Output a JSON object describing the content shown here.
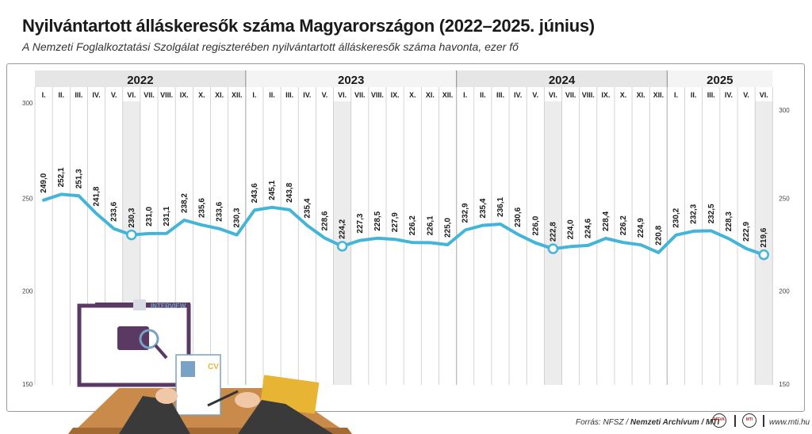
{
  "title": "Nyilvántartott álláskeresők száma Magyarországon (2022–2025. június)",
  "subtitle": "A Nemzeti Foglalkoztatási Szolgálat regiszterében nyilvántartott álláskeresők száma havonta, ezer fő",
  "footer": {
    "source_prefix": "Forrás: NFSZ / ",
    "source_bold": "Nemzeti Archívum / MTI",
    "logo1": "MTVA",
    "logo2": "MTI",
    "website": "www.mti.hu"
  },
  "illustration": {
    "interview_label": "INTERVIEW",
    "cv_label": "CV"
  },
  "colors": {
    "line": "#44b4d8",
    "band": "#e6e6e6",
    "highlight": "#ececec",
    "grid": "#c9c9c9"
  },
  "chart_data": {
    "type": "line",
    "years": [
      "2022",
      "2023",
      "2024",
      "2025"
    ],
    "x": [
      "I.",
      "II.",
      "III.",
      "IV.",
      "V.",
      "VI.",
      "VII.",
      "VIII.",
      "IX.",
      "X.",
      "XI.",
      "XII.",
      "I.",
      "II.",
      "III.",
      "IV.",
      "V.",
      "VI.",
      "VII.",
      "VIII.",
      "IX.",
      "X.",
      "XI.",
      "XII.",
      "I.",
      "II.",
      "III.",
      "IV.",
      "V.",
      "VI.",
      "VII.",
      "VIII.",
      "IX.",
      "X.",
      "XI.",
      "XII.",
      "I.",
      "II.",
      "III.",
      "IV.",
      "V.",
      "VI."
    ],
    "year_of_point": [
      "2022",
      "2022",
      "2022",
      "2022",
      "2022",
      "2022",
      "2022",
      "2022",
      "2022",
      "2022",
      "2022",
      "2022",
      "2023",
      "2023",
      "2023",
      "2023",
      "2023",
      "2023",
      "2023",
      "2023",
      "2023",
      "2023",
      "2023",
      "2023",
      "2024",
      "2024",
      "2024",
      "2024",
      "2024",
      "2024",
      "2024",
      "2024",
      "2024",
      "2024",
      "2024",
      "2024",
      "2025",
      "2025",
      "2025",
      "2025",
      "2025",
      "2025"
    ],
    "values": [
      249.0,
      252.1,
      251.3,
      241.8,
      233.6,
      230.3,
      231.0,
      231.1,
      238.2,
      235.6,
      233.6,
      230.3,
      243.6,
      245.1,
      243.8,
      235.4,
      228.6,
      224.2,
      227.3,
      228.5,
      227.9,
      226.2,
      226.1,
      225.0,
      232.9,
      235.4,
      236.1,
      230.6,
      226.0,
      222.8,
      224.0,
      224.6,
      228.4,
      226.2,
      224.9,
      220.8,
      230.2,
      232.3,
      232.5,
      228.3,
      222.9,
      219.6
    ],
    "value_labels": [
      "249,0",
      "252,1",
      "251,3",
      "241,8",
      "233,6",
      "230,3",
      "231,0",
      "231,1",
      "238,2",
      "235,6",
      "233,6",
      "230,3",
      "243,6",
      "245,1",
      "243,8",
      "235,4",
      "228,6",
      "224,2",
      "227,3",
      "228,5",
      "227,9",
      "226,2",
      "226,1",
      "225,0",
      "232,9",
      "235,4",
      "236,1",
      "230,6",
      "226,0",
      "222,8",
      "224,0",
      "224,6",
      "228,4",
      "226,2",
      "224,9",
      "220,8",
      "230,2",
      "232,3",
      "232,5",
      "228,3",
      "222,9",
      "219,6"
    ],
    "highlighted_indices": [
      5,
      17,
      29,
      41
    ],
    "ylim": [
      150,
      300
    ],
    "yticks": [
      150,
      200,
      250,
      300
    ],
    "ytick_labels": [
      "150",
      "200",
      "250",
      "300"
    ],
    "grid": true
  }
}
